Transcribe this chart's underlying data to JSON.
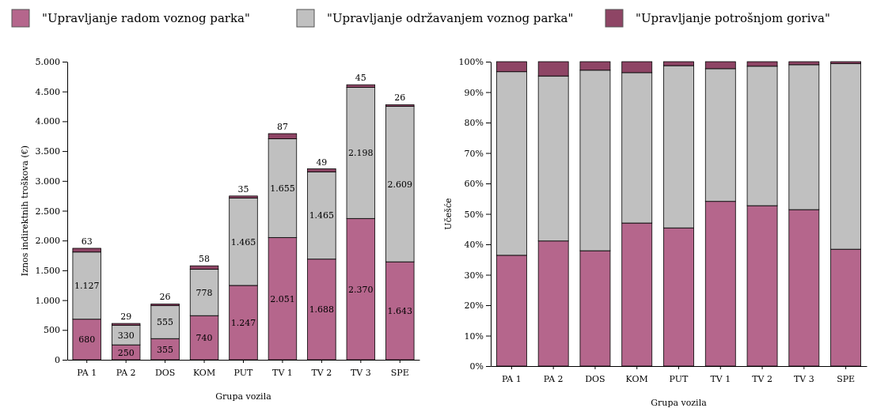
{
  "chart_data": [
    {
      "type": "bar",
      "stacked": true,
      "xlabel": "Grupa vozila",
      "ylabel": "Iznos indirektnih troškova (€)",
      "legend": "top",
      "grid": false,
      "categories": [
        "PA 1",
        "PA 2",
        "DOS",
        "KOM",
        "PUT",
        "TV 1",
        "TV 2",
        "TV 3",
        "SPE"
      ],
      "ylim": [
        0,
        5000
      ],
      "yticks": [
        0,
        {
          "value": 500,
          "label": "500"
        },
        {
          "value": 1000,
          "label": "1.000"
        },
        {
          "value": 1500,
          "label": "1.500"
        },
        {
          "value": 2000,
          "label": "2.000"
        },
        {
          "value": 2500,
          "label": "2.500"
        },
        {
          "value": 3000,
          "label": "3.000"
        },
        {
          "value": 3500,
          "label": "3.500"
        },
        {
          "value": 4000,
          "label": "4.000"
        },
        {
          "value": 4500,
          "label": "4.500"
        },
        {
          "value": 5000,
          "label": "5.000"
        }
      ],
      "series": [
        {
          "name": "\"Upravljanje radom voznog parka\"",
          "color": "#b5668c",
          "values": [
            680,
            250,
            355,
            740,
            1247,
            2051,
            1688,
            2370,
            1643
          ],
          "value_labels": [
            "680",
            "250",
            "355",
            "740",
            "1.247",
            "2.051",
            "1.688",
            "2.370",
            "1.643"
          ]
        },
        {
          "name": "\"Upravljanje održavanjem voznog parka\"",
          "color": "#c0c0c0",
          "values": [
            1127,
            330,
            555,
            778,
            1465,
            1655,
            1465,
            2198,
            2609
          ],
          "value_labels": [
            "1.127",
            "330",
            "555",
            "778",
            "1.465",
            "1.655",
            "1.465",
            "2.198",
            "2.609"
          ]
        },
        {
          "name": "\"Upravljanje potrošnjom goriva\"",
          "color": "#8e4565",
          "values": [
            63,
            29,
            26,
            58,
            35,
            87,
            49,
            45,
            26
          ],
          "value_labels": [
            "63",
            "29",
            "26",
            "58",
            "35",
            "87",
            "49",
            "45",
            "26"
          ]
        }
      ]
    },
    {
      "type": "bar",
      "stacked": true,
      "xlabel": "Grupa vozila",
      "ylabel": "Učešće",
      "grid": false,
      "categories": [
        "PA 1",
        "PA 2",
        "DOS",
        "KOM",
        "PUT",
        "TV 1",
        "TV 2",
        "TV 3",
        "SPE"
      ],
      "ylim": [
        0,
        100
      ],
      "yticks": [
        {
          "value": 0,
          "label": "0%"
        },
        {
          "value": 10,
          "label": "10%"
        },
        {
          "value": 20,
          "label": "20%"
        },
        {
          "value": 30,
          "label": "30%"
        },
        {
          "value": 40,
          "label": "40%"
        },
        {
          "value": 50,
          "label": "50%"
        },
        {
          "value": 60,
          "label": "60%"
        },
        {
          "value": 70,
          "label": "70%"
        },
        {
          "value": 80,
          "label": "80%"
        },
        {
          "value": 90,
          "label": "90%"
        },
        {
          "value": 100,
          "label": "100%"
        }
      ],
      "series": [
        {
          "color": "#b5668c",
          "values": [
            36.4,
            41.1,
            37.9,
            47.0,
            45.4,
            54.1,
            52.7,
            51.4,
            38.4
          ]
        },
        {
          "color": "#c0c0c0",
          "values": [
            60.3,
            54.2,
            59.3,
            49.4,
            53.3,
            43.6,
            45.8,
            47.6,
            61.0
          ]
        },
        {
          "color": "#8e4565",
          "values": [
            3.3,
            4.7,
            2.8,
            3.6,
            1.3,
            2.3,
            1.5,
            1.0,
            0.6
          ]
        }
      ]
    }
  ]
}
